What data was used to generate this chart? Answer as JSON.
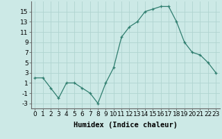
{
  "x": [
    0,
    1,
    2,
    3,
    4,
    5,
    6,
    7,
    8,
    9,
    10,
    11,
    12,
    13,
    14,
    15,
    16,
    17,
    18,
    19,
    20,
    21,
    22,
    23
  ],
  "y": [
    2,
    2,
    0,
    -2,
    1,
    1,
    0,
    -1,
    -3,
    1,
    4,
    10,
    12,
    13,
    15,
    15.5,
    16,
    16,
    13,
    9,
    7,
    6.5,
    5,
    3
  ],
  "line_color": "#2e7d6e",
  "marker": "+",
  "background_color": "#cce9e6",
  "grid_color": "#b0d4d0",
  "xlabel": "Humidex (Indice chaleur)",
  "xlim": [
    -0.5,
    23.5
  ],
  "ylim": [
    -4,
    17
  ],
  "yticks": [
    -3,
    -1,
    1,
    3,
    5,
    7,
    9,
    11,
    13,
    15
  ],
  "xticks": [
    0,
    1,
    2,
    3,
    4,
    5,
    6,
    7,
    8,
    9,
    10,
    11,
    12,
    13,
    14,
    15,
    16,
    17,
    18,
    19,
    20,
    21,
    22,
    23
  ],
  "xtick_labels": [
    "0",
    "1",
    "2",
    "3",
    "4",
    "5",
    "6",
    "7",
    "8",
    "9",
    "10",
    "11",
    "12",
    "13",
    "14",
    "15",
    "16",
    "17",
    "18",
    "19",
    "20",
    "21",
    "22",
    "23"
  ],
  "tick_fontsize": 6.5,
  "xlabel_fontsize": 7.5
}
